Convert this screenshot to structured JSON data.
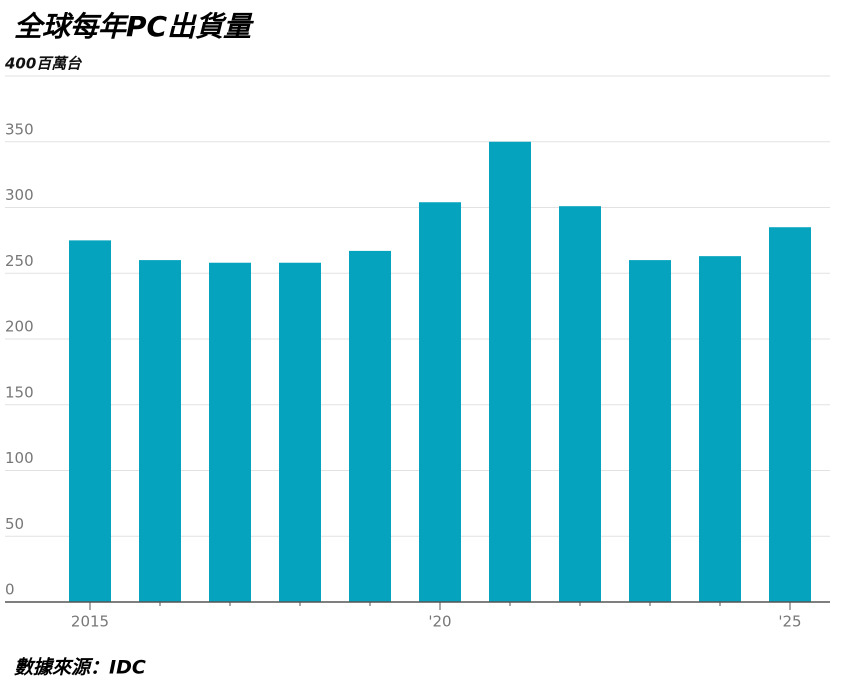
{
  "chart_data": {
    "type": "bar",
    "title": "全球每年PC出貨量",
    "source": "數據來源：IDC",
    "categories": [
      "2015",
      null,
      null,
      null,
      null,
      "'20",
      null,
      null,
      null,
      null,
      "'25"
    ],
    "values": [
      275,
      260,
      258,
      258,
      267,
      304,
      350,
      301,
      260,
      263,
      285
    ],
    "color": "#05a3bd",
    "ylim": [
      0,
      400
    ],
    "yticks": [
      0,
      50,
      100,
      150,
      200,
      250,
      300,
      350,
      {
        "value": 400,
        "label": "400百萬台"
      }
    ],
    "grid": true
  }
}
